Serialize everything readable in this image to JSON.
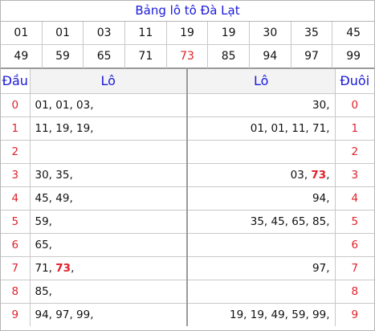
{
  "title": "Bảng lô tô Đà Lạt",
  "numbers": [
    "01",
    "01",
    "03",
    "11",
    "19",
    "19",
    "30",
    "35",
    "45",
    "49",
    "59",
    "65",
    "71",
    "73",
    "85",
    "94",
    "97",
    "99"
  ],
  "highlight_number": "73",
  "headers": {
    "dau": "Đầu",
    "lo_left": "Lô",
    "lo_right": "Lô",
    "duoi": "Đuôi"
  },
  "rows": [
    {
      "dau": "0",
      "left": [
        {
          "t": "01, 01, 03,"
        }
      ],
      "right": [
        {
          "t": "30,"
        }
      ],
      "duoi": "0"
    },
    {
      "dau": "1",
      "left": [
        {
          "t": "11, 19, 19,"
        }
      ],
      "right": [
        {
          "t": "01, 01, 11, 71,"
        }
      ],
      "duoi": "1"
    },
    {
      "dau": "2",
      "left": [],
      "right": [],
      "duoi": "2"
    },
    {
      "dau": "3",
      "left": [
        {
          "t": "30, 35,"
        }
      ],
      "right": [
        {
          "t": "03, "
        },
        {
          "t": "73",
          "hl": true
        },
        {
          "t": ","
        }
      ],
      "duoi": "3"
    },
    {
      "dau": "4",
      "left": [
        {
          "t": "45, 49,"
        }
      ],
      "right": [
        {
          "t": "94,"
        }
      ],
      "duoi": "4"
    },
    {
      "dau": "5",
      "left": [
        {
          "t": "59,"
        }
      ],
      "right": [
        {
          "t": "35, 45, 65, 85,"
        }
      ],
      "duoi": "5"
    },
    {
      "dau": "6",
      "left": [
        {
          "t": "65,"
        }
      ],
      "right": [],
      "duoi": "6"
    },
    {
      "dau": "7",
      "left": [
        {
          "t": "71, "
        },
        {
          "t": "73",
          "hl": true
        },
        {
          "t": ","
        }
      ],
      "right": [
        {
          "t": "97,"
        }
      ],
      "duoi": "7"
    },
    {
      "dau": "8",
      "left": [
        {
          "t": "85,"
        }
      ],
      "right": [],
      "duoi": "8"
    },
    {
      "dau": "9",
      "left": [
        {
          "t": "94, 97, 99,"
        }
      ],
      "right": [
        {
          "t": "19, 19, 49, 59, 99,"
        }
      ],
      "duoi": "9"
    }
  ]
}
